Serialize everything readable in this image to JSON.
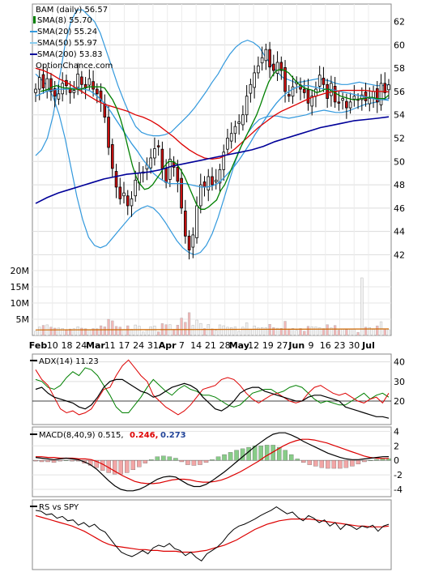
{
  "chart_data": {
    "type": "stock-chart",
    "price_panel": {
      "symbol_label": "BAM (daily) 56.57",
      "legend": [
        {
          "text": "SMA(8) 55.70",
          "color": "#008000"
        },
        {
          "text": "SMA(20) 55.24",
          "color": "#3399dd"
        },
        {
          "text": "SMA(50) 55.97",
          "color": "#dd0000"
        },
        {
          "text": "SMA(200) 53.83",
          "color": "#000099"
        }
      ],
      "watermark": "OptionChance.com",
      "y_ticks": [
        42,
        44,
        46,
        48,
        50,
        52,
        54,
        56,
        58,
        60,
        62
      ],
      "ylim": [
        40.5,
        63.5
      ],
      "close": [
        56.2,
        57.2,
        56.3,
        57.1,
        56.0,
        55.6,
        55.8,
        56.7,
        56.5,
        55.9,
        56.1,
        57.5,
        56.6,
        56.3,
        57.1,
        56.2,
        55.8,
        55.2,
        53.8,
        51.2,
        49.4,
        47.8,
        46.8,
        47.3,
        46.2,
        46.8,
        48.4,
        49.0,
        49.1,
        49.7,
        50.3,
        51.1,
        51.3,
        49.4,
        48.2,
        50.2,
        49.5,
        48.3,
        46.0,
        43.6,
        42.4,
        43.7,
        46.2,
        48.0,
        47.8,
        48.7,
        48.0,
        48.4,
        49.3,
        50.8,
        52.0,
        52.4,
        53.0,
        53.4,
        54.0,
        55.6,
        56.6,
        57.6,
        58.2,
        58.9,
        59.6,
        58.1,
        57.8,
        58.5,
        57.8,
        56.0,
        55.6,
        56.4,
        56.8,
        56.2,
        55.9,
        55.0,
        55.6,
        56.2,
        57.4,
        56.6,
        55.4,
        56.7,
        55.1,
        55.0,
        55.4,
        54.6,
        55.1,
        55.6,
        55.3,
        55.7,
        55.2,
        55.4,
        56.0,
        55.1,
        56.7,
        55.9,
        56.57
      ],
      "sma8": [
        56.0,
        56.1,
        56.2,
        56.4,
        56.5,
        56.4,
        56.3,
        56.3,
        56.2,
        56.2,
        56.2,
        56.3,
        56.4,
        56.4,
        56.4,
        56.4,
        56.3,
        55.8,
        55.3,
        54.6,
        53.6,
        52.4,
        51.0,
        49.6,
        48.6,
        48.0,
        47.6,
        47.7,
        48.0,
        48.5,
        49.0,
        49.6,
        50.0,
        50.0,
        49.8,
        49.3,
        48.7,
        47.9,
        47.1,
        46.3,
        45.9,
        45.9,
        46.1,
        46.4,
        46.7,
        47.5,
        48.0,
        48.8,
        49.6,
        50.4,
        51.2,
        51.9,
        52.6,
        53.3,
        54.0,
        54.9,
        55.9,
        56.8,
        57.4,
        57.8,
        57.9,
        57.8,
        57.6,
        57.2,
        56.8,
        56.5,
        56.3,
        56.2,
        56.1,
        55.9,
        56.0,
        56.2,
        56.2,
        56.0,
        55.8,
        55.6,
        55.5,
        55.4,
        55.3,
        55.3,
        55.4,
        55.4,
        55.5,
        55.5,
        55.4,
        55.4,
        55.4,
        55.7
      ],
      "sma20": [
        55.6,
        55.8,
        56.0,
        56.1,
        56.2,
        56.2,
        56.2,
        56.3,
        56.3,
        56.2,
        56.1,
        55.8,
        55.4,
        54.9,
        54.3,
        53.6,
        52.9,
        52.2,
        51.5,
        50.9,
        50.2,
        49.6,
        49.0,
        48.6,
        48.3,
        48.1,
        48.1,
        48.1,
        48.1,
        48.0,
        47.9,
        47.8,
        47.8,
        47.9,
        48.1,
        48.5,
        49.0,
        49.5,
        50.1,
        50.8,
        51.5,
        52.3,
        53.0,
        53.7,
        54.4,
        55.0,
        55.5,
        55.9,
        56.2,
        56.4,
        56.5,
        56.5,
        56.4,
        56.3,
        56.2,
        56.2,
        56.1,
        56.0,
        55.9,
        55.8,
        55.7,
        55.6,
        55.5,
        55.4,
        55.3,
        55.3,
        55.24
      ],
      "bb_upper": [
        50.5,
        51.0,
        52.0,
        54.0,
        57.0,
        60.0,
        62.0,
        63.0,
        63.0,
        62.5,
        62.0,
        61.0,
        59.5,
        58.0,
        56.5,
        55.2,
        54.0,
        53.0,
        52.5,
        52.3,
        52.2,
        52.2,
        52.3,
        52.5,
        53.0,
        53.5,
        54.0,
        54.6,
        55.3,
        56.0,
        56.8,
        57.5,
        58.4,
        59.2,
        59.8,
        60.2,
        60.4,
        60.2,
        59.8,
        59.0,
        58.3,
        57.7,
        57.2,
        57.0,
        56.8,
        56.8,
        56.9,
        57.0,
        57.1,
        57.0,
        56.9,
        56.7,
        56.6,
        56.6,
        56.7,
        56.8,
        56.7,
        56.6,
        56.5,
        56.5,
        56.6
      ],
      "bb_lower": [
        57.5,
        57.0,
        56.5,
        55.5,
        54.0,
        52.0,
        49.5,
        47.0,
        45.0,
        43.5,
        42.8,
        42.6,
        42.8,
        43.4,
        44.0,
        44.6,
        45.2,
        45.7,
        46.0,
        46.2,
        46.0,
        45.5,
        44.8,
        44.0,
        43.2,
        42.6,
        42.2,
        42.0,
        42.2,
        42.8,
        43.8,
        45.2,
        46.8,
        48.5,
        50.1,
        51.4,
        52.4,
        53.1,
        53.6,
        53.8,
        53.9,
        53.9,
        53.8,
        53.7,
        53.8,
        53.9,
        54.0,
        54.2,
        54.3,
        54.4,
        54.3,
        54.2,
        54.2,
        54.3,
        54.5,
        54.7,
        54.9,
        55.0,
        55.1,
        55.3,
        55.4
      ],
      "sma50": [
        58.0,
        57.8,
        57.5,
        57.1,
        56.8,
        56.4,
        56.0,
        55.6,
        55.2,
        54.9,
        54.7,
        54.5,
        54.3,
        54.0,
        53.8,
        53.5,
        53.1,
        52.6,
        52.1,
        51.5,
        51.0,
        50.6,
        50.3,
        50.2,
        50.3,
        50.6,
        51.1,
        51.7,
        52.3,
        52.9,
        53.4,
        53.9,
        54.3,
        54.6,
        54.9,
        55.2,
        55.5,
        55.7,
        55.9,
        56.0,
        56.1,
        56.1,
        56.1,
        56.1,
        56.0,
        56.0,
        55.97
      ],
      "sma200": [
        46.4,
        46.9,
        47.3,
        47.6,
        47.9,
        48.2,
        48.5,
        48.7,
        48.9,
        49.0,
        49.1,
        49.3,
        49.6,
        49.8,
        50.0,
        50.2,
        50.4,
        50.6,
        50.8,
        51.0,
        51.3,
        51.7,
        52.0,
        52.3,
        52.6,
        52.9,
        53.1,
        53.3,
        53.5,
        53.6,
        53.7,
        53.83
      ]
    },
    "volume_panel": {
      "y_ticks": [
        "5M",
        "10M",
        "15M",
        "20M"
      ],
      "ylim": [
        0,
        21000000
      ]
    },
    "x_axis_labels": [
      "Feb",
      "10",
      "18",
      "24",
      "Mar",
      "11",
      "17",
      "24",
      "31",
      "Apr",
      "7",
      "14",
      "21",
      "28",
      "May",
      "12",
      "19",
      "27",
      "Jun",
      "9",
      "16",
      "23",
      "30",
      "Jul"
    ],
    "adx_panel": {
      "label": "ADX(14) 11.23",
      "y_ticks": [
        20,
        30,
        40
      ],
      "ylim": [
        8,
        44
      ],
      "adx": [
        26,
        27,
        24,
        22,
        21,
        20,
        19,
        17,
        16,
        18,
        22,
        27,
        30,
        31,
        31,
        29,
        27,
        25,
        24,
        22,
        23,
        25,
        27,
        28,
        29,
        28,
        26,
        22,
        19,
        16,
        15,
        17,
        20,
        24,
        26,
        27,
        27,
        25,
        24,
        23,
        22,
        21,
        20,
        20,
        22,
        23,
        23,
        22,
        21,
        20,
        17,
        16,
        15,
        14,
        13,
        12,
        12,
        11.23
      ],
      "plus_di": [
        31,
        30,
        27,
        26,
        28,
        32,
        35,
        33,
        37,
        36,
        33,
        28,
        23,
        17,
        14,
        14,
        18,
        22,
        27,
        31,
        28,
        25,
        23,
        26,
        28,
        26,
        25,
        23,
        23,
        22,
        20,
        18,
        17,
        18,
        21,
        24,
        25,
        26,
        26,
        24,
        25,
        27,
        28,
        27,
        24,
        21,
        19,
        20,
        19,
        18,
        18,
        20,
        22,
        24,
        21,
        23,
        24,
        22
      ],
      "minus_di": [
        36,
        31,
        28,
        22,
        16,
        14,
        15,
        13,
        14,
        16,
        21,
        26,
        27,
        33,
        38,
        41,
        37,
        33,
        30,
        23,
        20,
        17,
        15,
        13,
        15,
        18,
        22,
        26,
        27,
        28,
        31,
        32,
        31,
        28,
        24,
        21,
        19,
        21,
        23,
        24,
        22,
        20,
        19,
        20,
        24,
        27,
        28,
        26,
        24,
        23,
        24,
        22,
        20,
        19,
        21,
        22,
        19,
        24
      ]
    },
    "macd_panel": {
      "label": "MACD(8,40,9) 0.515,",
      "value_red": "0.246,",
      "value_blue": "0.273",
      "y_ticks": [
        -4,
        -2,
        0,
        2,
        4
      ],
      "ylim": [
        -5,
        4.6
      ],
      "macd": [
        0.4,
        0.3,
        0.2,
        0.1,
        0.2,
        0.3,
        0.2,
        0.1,
        -0.2,
        -0.6,
        -1.2,
        -2.0,
        -2.8,
        -3.5,
        -4.0,
        -4.2,
        -4.2,
        -4.0,
        -3.6,
        -3.1,
        -2.6,
        -2.3,
        -2.2,
        -2.3,
        -2.8,
        -3.3,
        -3.6,
        -3.6,
        -3.3,
        -2.8,
        -2.2,
        -1.6,
        -0.9,
        -0.2,
        0.5,
        1.2,
        1.9,
        2.5,
        3.1,
        3.6,
        3.8,
        3.8,
        3.5,
        3.1,
        2.6,
        2.2,
        1.8,
        1.4,
        1.0,
        0.7,
        0.4,
        0.2,
        0.1,
        0.1,
        0.2,
        0.3,
        0.4,
        0.5,
        0.515
      ],
      "signal": [
        0.5,
        0.5,
        0.4,
        0.4,
        0.3,
        0.3,
        0.3,
        0.2,
        0.2,
        0.1,
        -0.2,
        -0.6,
        -1.1,
        -1.6,
        -2.1,
        -2.5,
        -2.9,
        -3.1,
        -3.2,
        -3.2,
        -3.1,
        -2.9,
        -2.7,
        -2.6,
        -2.6,
        -2.7,
        -2.9,
        -3.0,
        -3.0,
        -2.9,
        -2.7,
        -2.4,
        -2.0,
        -1.6,
        -1.1,
        -0.6,
        -0.1,
        0.5,
        1.0,
        1.5,
        2.0,
        2.4,
        2.7,
        2.9,
        2.9,
        2.8,
        2.6,
        2.4,
        2.1,
        1.8,
        1.5,
        1.2,
        0.9,
        0.6,
        0.4,
        0.3,
        0.27,
        0.273
      ]
    },
    "rs_panel": {
      "label": "RS vs SPY",
      "rs": [
        88,
        87,
        83,
        84,
        79,
        81,
        76,
        77,
        71,
        74,
        69,
        72,
        66,
        63,
        55,
        47,
        40,
        37,
        35,
        38,
        42,
        38,
        45,
        48,
        46,
        50,
        44,
        42,
        36,
        40,
        34,
        30,
        38,
        42,
        46,
        52,
        60,
        66,
        70,
        72,
        75,
        78,
        82,
        85,
        88,
        92,
        88,
        84,
        86,
        80,
        76,
        82,
        79,
        74,
        77,
        70,
        74,
        66,
        72,
        70,
        66,
        70,
        68,
        71,
        64,
        70,
        72
      ],
      "rs_sma": [
        82,
        80,
        78,
        76,
        74,
        72,
        70,
        67,
        64,
        60,
        56,
        52,
        49,
        47,
        46,
        45,
        44,
        43,
        43,
        42,
        42,
        41,
        41,
        41,
        40,
        40,
        40,
        41,
        42,
        44,
        46,
        48,
        51,
        54,
        58,
        62,
        66,
        69,
        72,
        74,
        76,
        77,
        78,
        78,
        78,
        78,
        77,
        76,
        75,
        74,
        73,
        72,
        71,
        70,
        70,
        69,
        69,
        69,
        70
      ]
    }
  }
}
